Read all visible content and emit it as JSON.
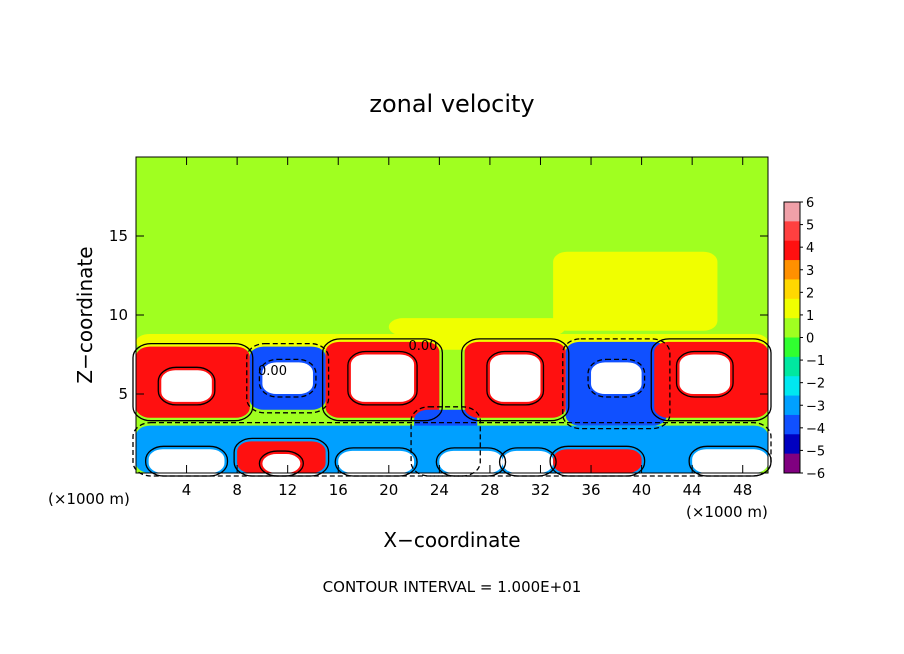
{
  "chart_data": {
    "type": "heatmap",
    "title": "zonal velocity",
    "xlabel": "X−coordinate",
    "ylabel": "Z−coordinate",
    "x_unit_left": "(×1000 m)",
    "x_unit_right": "(×1000 m)",
    "footer": "CONTOUR INTERVAL = 1.000E+01",
    "xlim": [
      0,
      50
    ],
    "ylim": [
      0,
      20
    ],
    "x_ticks": [
      4,
      8,
      12,
      16,
      20,
      24,
      28,
      32,
      36,
      40,
      44,
      48
    ],
    "x_tick_labels": [
      "4",
      "8",
      "12",
      "16",
      "20",
      "24",
      "28",
      "32",
      "36",
      "40",
      "44",
      "48"
    ],
    "y_ticks": [
      5,
      10,
      15
    ],
    "y_tick_labels": [
      "5",
      "10",
      "15"
    ],
    "contour_labels": [
      {
        "text": "0.00",
        "x": 10.8,
        "y": 6.2
      },
      {
        "text": "0.00",
        "x": 22.7,
        "y": 7.8
      }
    ],
    "colorbar": {
      "min": -6,
      "max": 6,
      "labels": [
        "6",
        "5",
        "4",
        "3",
        "2",
        "1",
        "0",
        "−1",
        "−2",
        "−3",
        "−4",
        "−5",
        "−6"
      ],
      "values": [
        6,
        5,
        4,
        3,
        2,
        1,
        0,
        -1,
        -2,
        -3,
        -4,
        -5,
        -6
      ],
      "colors": [
        "#f0a0a8",
        "#ff4040",
        "#ff1010",
        "#ff9000",
        "#ffd800",
        "#f0ff00",
        "#a0ff20",
        "#30ff30",
        "#00e8a0",
        "#00e8f0",
        "#00a0ff",
        "#1050ff",
        "#0000c0",
        "#800080"
      ]
    },
    "cells": [
      {
        "x": [
          0,
          50
        ],
        "y": [
          0,
          20
        ],
        "v": 0.2
      },
      {
        "x": [
          33,
          46
        ],
        "y": [
          9,
          14
        ],
        "v": 1.5
      },
      {
        "x": [
          20,
          34
        ],
        "y": [
          8.7,
          9.8
        ],
        "v": 1.2
      },
      {
        "x": [
          0,
          50
        ],
        "y": [
          7.8,
          8.8
        ],
        "v": 0.9
      },
      {
        "x": [
          0,
          9
        ],
        "y": [
          3.5,
          8
        ],
        "v": 4
      },
      {
        "x": [
          2,
          6
        ],
        "y": [
          4.5,
          6.5
        ],
        "v": 6.5
      },
      {
        "x": [
          9,
          15
        ],
        "y": [
          4,
          8
        ],
        "v": -4
      },
      {
        "x": [
          10,
          14
        ],
        "y": [
          5,
          7
        ],
        "v": -6.5
      },
      {
        "x": [
          15,
          24
        ],
        "y": [
          3.5,
          8.3
        ],
        "v": 4
      },
      {
        "x": [
          17,
          22
        ],
        "y": [
          4.5,
          7.5
        ],
        "v": 6.5
      },
      {
        "x": [
          22,
          27
        ],
        "y": [
          0,
          4
        ],
        "v": -4
      },
      {
        "x": [
          26,
          34
        ],
        "y": [
          3.5,
          8.3
        ],
        "v": 4
      },
      {
        "x": [
          28,
          32
        ],
        "y": [
          4.5,
          7.5
        ],
        "v": 6.5
      },
      {
        "x": [
          34,
          42
        ],
        "y": [
          3,
          8.3
        ],
        "v": -4
      },
      {
        "x": [
          36,
          40
        ],
        "y": [
          5,
          7
        ],
        "v": -6.5
      },
      {
        "x": [
          41,
          50
        ],
        "y": [
          3.5,
          8.3
        ],
        "v": 4
      },
      {
        "x": [
          43,
          47
        ],
        "y": [
          5,
          7.5
        ],
        "v": 6.5
      },
      {
        "x": [
          0,
          50
        ],
        "y": [
          0,
          3
        ],
        "v": -3
      },
      {
        "x": [
          1,
          7
        ],
        "y": [
          0,
          1.5
        ],
        "v": 6.5
      },
      {
        "x": [
          8,
          15
        ],
        "y": [
          0,
          2
        ],
        "v": 4
      },
      {
        "x": [
          10,
          13
        ],
        "y": [
          0,
          1.2
        ],
        "v": 6.5
      },
      {
        "x": [
          16,
          22
        ],
        "y": [
          0,
          1.4
        ],
        "v": 6.5
      },
      {
        "x": [
          24,
          29
        ],
        "y": [
          0,
          1.4
        ],
        "v": 6.5
      },
      {
        "x": [
          29,
          33
        ],
        "y": [
          0,
          1.4
        ],
        "v": 6.5
      },
      {
        "x": [
          33,
          40
        ],
        "y": [
          0,
          1.5
        ],
        "v": 4
      },
      {
        "x": [
          44,
          50
        ],
        "y": [
          0,
          1.5
        ],
        "v": 6.5
      }
    ]
  }
}
